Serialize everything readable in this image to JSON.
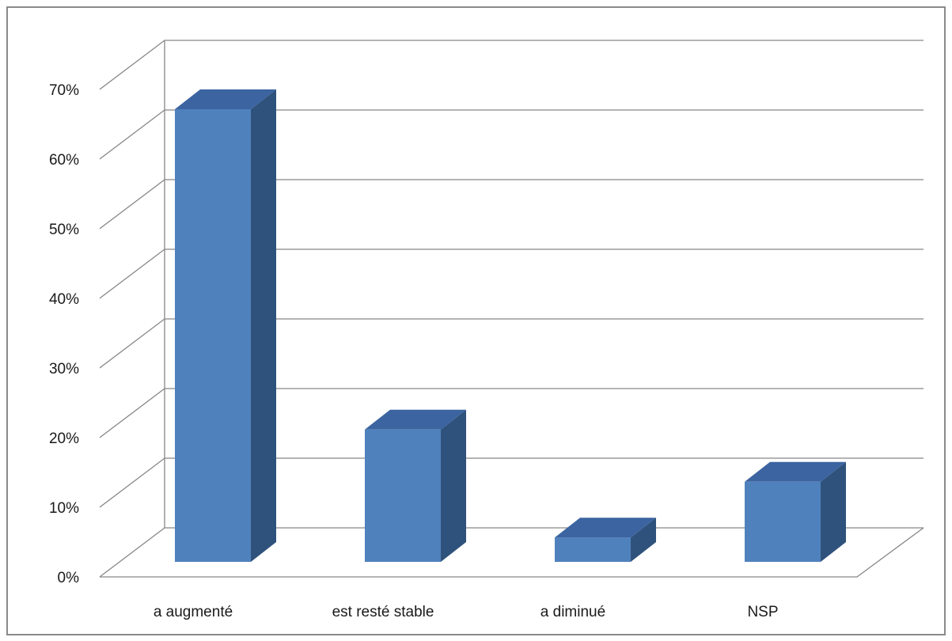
{
  "chart_data": {
    "type": "bar",
    "style": "3d-column",
    "categories": [
      "a augmenté",
      "est resté stable",
      "a diminué",
      "NSP"
    ],
    "values": [
      65,
      19,
      3.5,
      11.5
    ],
    "value_unit": "%",
    "title": "",
    "xlabel": "",
    "ylabel": "",
    "ylim": [
      0,
      70
    ],
    "yticks": [
      0,
      10,
      20,
      30,
      40,
      50,
      60,
      70
    ],
    "ytick_labels": [
      "0%",
      "10%",
      "20%",
      "30%",
      "40%",
      "50%",
      "60%",
      "70%"
    ],
    "grid": true,
    "legend": "none",
    "colors": {
      "bar_front": "#4f81bd",
      "bar_top": "#3b64a0",
      "bar_side": "#2f527c",
      "gridline": "#878787",
      "frame": "#8a8a8a"
    }
  }
}
